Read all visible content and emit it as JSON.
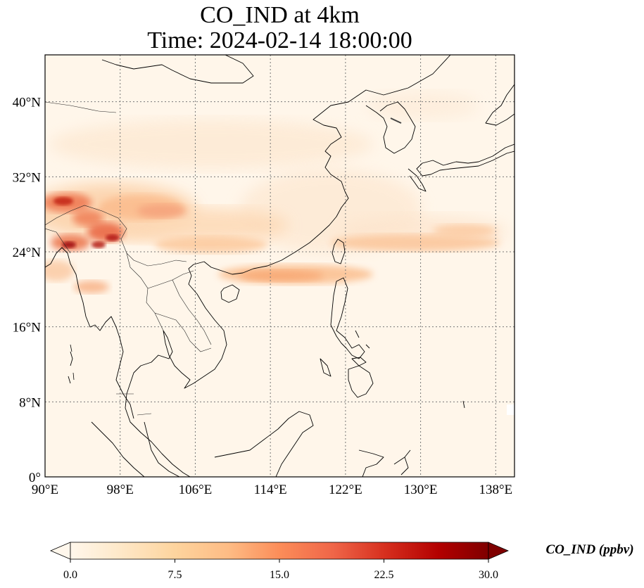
{
  "figure": {
    "title_line1": "CO_IND at 4km",
    "title_line2": "Time: 2024-02-14 18:00:00"
  },
  "map": {
    "extent": {
      "lon": [
        90,
        140
      ],
      "lat": [
        0,
        45
      ]
    },
    "lon_ticks": [
      {
        "value": 90,
        "label": "90°E"
      },
      {
        "value": 98,
        "label": "98°E"
      },
      {
        "value": 106,
        "label": "106°E"
      },
      {
        "value": 114,
        "label": "114°E"
      },
      {
        "value": 122,
        "label": "122°E"
      },
      {
        "value": 130,
        "label": "130°E"
      },
      {
        "value": 138,
        "label": "138°E"
      }
    ],
    "lat_ticks": [
      {
        "value": 0,
        "label": "0°"
      },
      {
        "value": 8,
        "label": "8°N"
      },
      {
        "value": 16,
        "label": "16°N"
      },
      {
        "value": 24,
        "label": "24°N"
      },
      {
        "value": 32,
        "label": "32°N"
      },
      {
        "value": 40,
        "label": "40°N"
      }
    ],
    "gridlines": true,
    "coastlines": true,
    "borders": true
  },
  "colorbar": {
    "label": "CO_IND (ppbv)",
    "range": [
      0,
      30
    ],
    "extend": "both",
    "colormap": "OrRd",
    "ticks": [
      {
        "value": 0,
        "label": "0.0"
      },
      {
        "value": 7.5,
        "label": "7.5"
      },
      {
        "value": 15,
        "label": "15.0"
      },
      {
        "value": 22.5,
        "label": "22.5"
      },
      {
        "value": 30,
        "label": "30.0"
      }
    ]
  },
  "chart_data": {
    "type": "heatmap",
    "variable": "CO_IND",
    "unit": "ppbv",
    "field_features": [
      {
        "feature": "NW Myanmar / Tibet hotspot",
        "lon": 92,
        "lat": 29.5,
        "value": 24
      },
      {
        "feature": "Myanmar–Yunnan cluster",
        "lon": 96,
        "lat": 26,
        "value": 26
      },
      {
        "feature": "Myanmar hotspot",
        "lon": 93,
        "lat": 25,
        "value": 27
      },
      {
        "feature": "Southern China band",
        "lon": 105,
        "lat": 25,
        "value": 9
      },
      {
        "feature": "South China Sea plume",
        "lon": 118,
        "lat": 21.5,
        "value": 11
      },
      {
        "feature": "East of Taiwan plume",
        "lon": 130,
        "lat": 25,
        "value": 9
      },
      {
        "feature": "Yellow Sea / East China Sea",
        "lon": 122,
        "lat": 34,
        "value": 4
      }
    ]
  }
}
